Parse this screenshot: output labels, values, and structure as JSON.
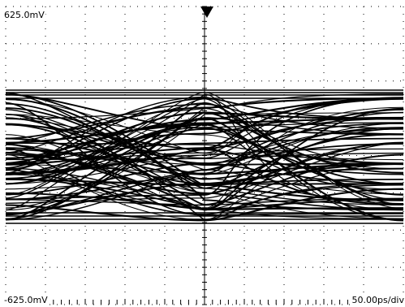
{
  "display": {
    "volts_top": "625.0mV",
    "volts_bottom": "-625.0mV",
    "timebase": "50.00ps/div",
    "trigger_marker": "trigger-position-marker"
  },
  "colors": {
    "background": "#ffffff",
    "trace": "#000000",
    "graticule": "#000000"
  }
}
